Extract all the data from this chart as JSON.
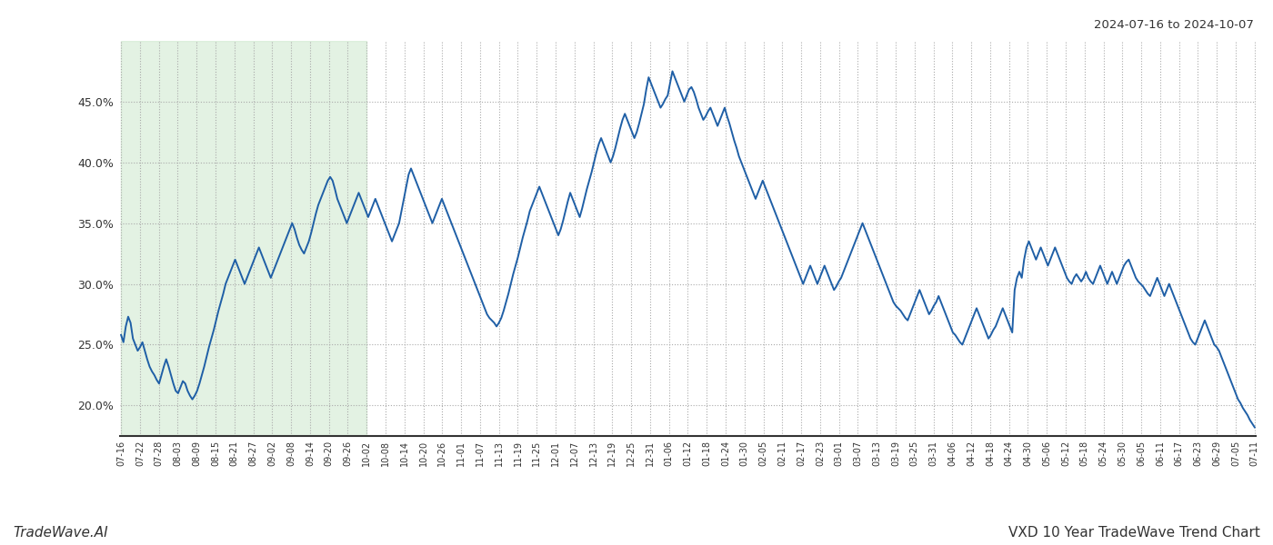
{
  "title_right": "2024-07-16 to 2024-10-07",
  "footer_left": "TradeWave.AI",
  "footer_right": "VXD 10 Year TradeWave Trend Chart",
  "line_color": "#1f5fa6",
  "line_width": 1.4,
  "shade_color": "#cce8cc",
  "shade_alpha": 0.55,
  "background_color": "#ffffff",
  "grid_color": "#aaaaaa",
  "grid_style": ":",
  "ylim": [
    17.5,
    50.0
  ],
  "yticks": [
    20.0,
    25.0,
    30.0,
    35.0,
    40.0,
    45.0
  ],
  "x_labels": [
    "07-16",
    "07-22",
    "07-28",
    "08-03",
    "08-09",
    "08-15",
    "08-21",
    "08-27",
    "09-02",
    "09-08",
    "09-14",
    "09-20",
    "09-26",
    "10-02",
    "10-08",
    "10-14",
    "10-20",
    "10-26",
    "11-01",
    "11-07",
    "11-13",
    "11-19",
    "11-25",
    "12-01",
    "12-07",
    "12-13",
    "12-19",
    "12-25",
    "12-31",
    "01-06",
    "01-12",
    "01-18",
    "01-24",
    "01-30",
    "02-05",
    "02-11",
    "02-17",
    "02-23",
    "03-01",
    "03-07",
    "03-13",
    "03-19",
    "03-25",
    "03-31",
    "04-06",
    "04-12",
    "04-18",
    "04-24",
    "04-30",
    "05-06",
    "05-12",
    "05-18",
    "05-24",
    "05-30",
    "06-05",
    "06-11",
    "06-17",
    "06-23",
    "06-29",
    "07-05",
    "07-11"
  ],
  "shade_end_label": "10-02",
  "values": [
    25.8,
    25.2,
    26.5,
    27.3,
    26.8,
    25.5,
    25.0,
    24.5,
    24.8,
    25.2,
    24.5,
    23.8,
    23.2,
    22.8,
    22.5,
    22.1,
    21.8,
    22.5,
    23.2,
    23.8,
    23.2,
    22.5,
    21.8,
    21.2,
    21.0,
    21.5,
    22.0,
    21.8,
    21.2,
    20.8,
    20.5,
    20.8,
    21.2,
    21.8,
    22.5,
    23.2,
    24.0,
    24.8,
    25.5,
    26.2,
    27.0,
    27.8,
    28.5,
    29.2,
    30.0,
    30.5,
    31.0,
    31.5,
    32.0,
    31.5,
    31.0,
    30.5,
    30.0,
    30.5,
    31.0,
    31.5,
    32.0,
    32.5,
    33.0,
    32.5,
    32.0,
    31.5,
    31.0,
    30.5,
    31.0,
    31.5,
    32.0,
    32.5,
    33.0,
    33.5,
    34.0,
    34.5,
    35.0,
    34.5,
    33.8,
    33.2,
    32.8,
    32.5,
    33.0,
    33.5,
    34.2,
    35.0,
    35.8,
    36.5,
    37.0,
    37.5,
    38.0,
    38.5,
    38.8,
    38.5,
    37.8,
    37.0,
    36.5,
    36.0,
    35.5,
    35.0,
    35.5,
    36.0,
    36.5,
    37.0,
    37.5,
    37.0,
    36.5,
    36.0,
    35.5,
    36.0,
    36.5,
    37.0,
    36.5,
    36.0,
    35.5,
    35.0,
    34.5,
    34.0,
    33.5,
    34.0,
    34.5,
    35.0,
    36.0,
    37.0,
    38.0,
    39.0,
    39.5,
    39.0,
    38.5,
    38.0,
    37.5,
    37.0,
    36.5,
    36.0,
    35.5,
    35.0,
    35.5,
    36.0,
    36.5,
    37.0,
    36.5,
    36.0,
    35.5,
    35.0,
    34.5,
    34.0,
    33.5,
    33.0,
    32.5,
    32.0,
    31.5,
    31.0,
    30.5,
    30.0,
    29.5,
    29.0,
    28.5,
    28.0,
    27.5,
    27.2,
    27.0,
    26.8,
    26.5,
    26.8,
    27.2,
    27.8,
    28.5,
    29.2,
    30.0,
    30.8,
    31.5,
    32.2,
    33.0,
    33.8,
    34.5,
    35.2,
    36.0,
    36.5,
    37.0,
    37.5,
    38.0,
    37.5,
    37.0,
    36.5,
    36.0,
    35.5,
    35.0,
    34.5,
    34.0,
    34.5,
    35.2,
    36.0,
    36.8,
    37.5,
    37.0,
    36.5,
    36.0,
    35.5,
    36.2,
    37.0,
    37.8,
    38.5,
    39.2,
    40.0,
    40.8,
    41.5,
    42.0,
    41.5,
    41.0,
    40.5,
    40.0,
    40.5,
    41.2,
    42.0,
    42.8,
    43.5,
    44.0,
    43.5,
    43.0,
    42.5,
    42.0,
    42.5,
    43.2,
    44.0,
    44.8,
    46.0,
    47.0,
    46.5,
    46.0,
    45.5,
    45.0,
    44.5,
    44.8,
    45.2,
    45.5,
    46.5,
    47.5,
    47.0,
    46.5,
    46.0,
    45.5,
    45.0,
    45.5,
    46.0,
    46.2,
    45.8,
    45.2,
    44.5,
    44.0,
    43.5,
    43.8,
    44.2,
    44.5,
    44.0,
    43.5,
    43.0,
    43.5,
    44.0,
    44.5,
    43.8,
    43.2,
    42.5,
    41.8,
    41.2,
    40.5,
    40.0,
    39.5,
    39.0,
    38.5,
    38.0,
    37.5,
    37.0,
    37.5,
    38.0,
    38.5,
    38.0,
    37.5,
    37.0,
    36.5,
    36.0,
    35.5,
    35.0,
    34.5,
    34.0,
    33.5,
    33.0,
    32.5,
    32.0,
    31.5,
    31.0,
    30.5,
    30.0,
    30.5,
    31.0,
    31.5,
    31.0,
    30.5,
    30.0,
    30.5,
    31.0,
    31.5,
    31.0,
    30.5,
    30.0,
    29.5,
    29.8,
    30.2,
    30.5,
    31.0,
    31.5,
    32.0,
    32.5,
    33.0,
    33.5,
    34.0,
    34.5,
    35.0,
    34.5,
    34.0,
    33.5,
    33.0,
    32.5,
    32.0,
    31.5,
    31.0,
    30.5,
    30.0,
    29.5,
    29.0,
    28.5,
    28.2,
    28.0,
    27.8,
    27.5,
    27.2,
    27.0,
    27.5,
    28.0,
    28.5,
    29.0,
    29.5,
    29.0,
    28.5,
    28.0,
    27.5,
    27.8,
    28.2,
    28.5,
    29.0,
    28.5,
    28.0,
    27.5,
    27.0,
    26.5,
    26.0,
    25.8,
    25.5,
    25.2,
    25.0,
    25.5,
    26.0,
    26.5,
    27.0,
    27.5,
    28.0,
    27.5,
    27.0,
    26.5,
    26.0,
    25.5,
    25.8,
    26.2,
    26.5,
    27.0,
    27.5,
    28.0,
    27.5,
    27.0,
    26.5,
    26.0,
    29.5,
    30.5,
    31.0,
    30.5,
    32.0,
    33.0,
    33.5,
    33.0,
    32.5,
    32.0,
    32.5,
    33.0,
    32.5,
    32.0,
    31.5,
    32.0,
    32.5,
    33.0,
    32.5,
    32.0,
    31.5,
    31.0,
    30.5,
    30.2,
    30.0,
    30.5,
    30.8,
    30.5,
    30.2,
    30.5,
    31.0,
    30.5,
    30.2,
    30.0,
    30.5,
    31.0,
    31.5,
    31.0,
    30.5,
    30.0,
    30.5,
    31.0,
    30.5,
    30.0,
    30.5,
    31.0,
    31.5,
    31.8,
    32.0,
    31.5,
    31.0,
    30.5,
    30.2,
    30.0,
    29.8,
    29.5,
    29.2,
    29.0,
    29.5,
    30.0,
    30.5,
    30.0,
    29.5,
    29.0,
    29.5,
    30.0,
    29.5,
    29.0,
    28.5,
    28.0,
    27.5,
    27.0,
    26.5,
    26.0,
    25.5,
    25.2,
    25.0,
    25.5,
    26.0,
    26.5,
    27.0,
    26.5,
    26.0,
    25.5,
    25.0,
    24.8,
    24.5,
    24.0,
    23.5,
    23.0,
    22.5,
    22.0,
    21.5,
    21.0,
    20.5,
    20.2,
    19.8,
    19.5,
    19.2,
    18.8,
    18.5,
    18.2
  ]
}
